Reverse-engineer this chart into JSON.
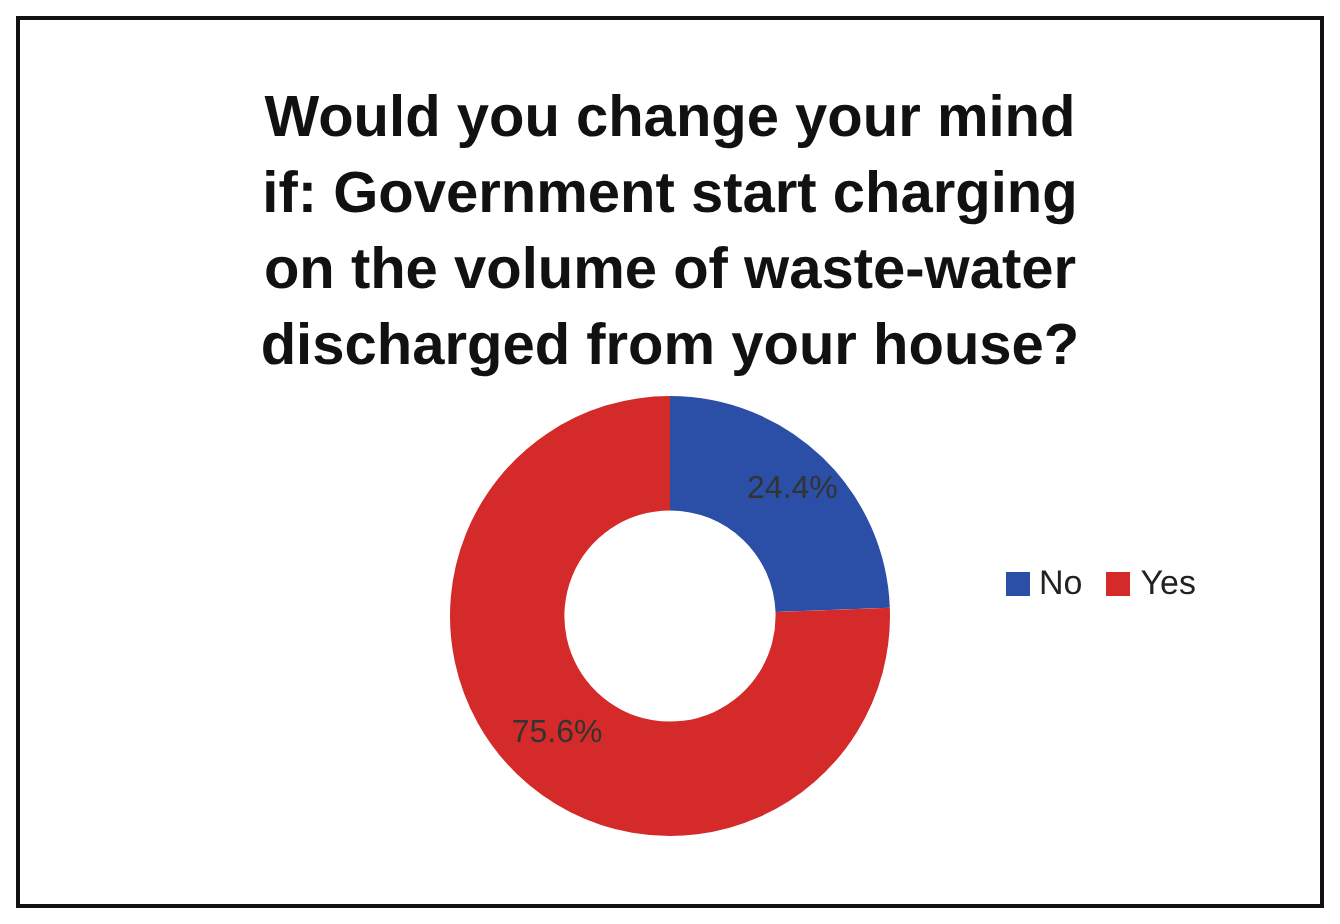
{
  "chart_data": {
    "type": "donut",
    "title": "Would you change your mind if: Government start charging on the volume of waste-water discharged from your house?",
    "categories": [
      "No",
      "Yes"
    ],
    "values": [
      24.4,
      75.6
    ],
    "colors": [
      "#2b4fa6",
      "#d42a2a"
    ],
    "value_labels": [
      "24.4%",
      "75.6%"
    ],
    "legend": "right"
  }
}
